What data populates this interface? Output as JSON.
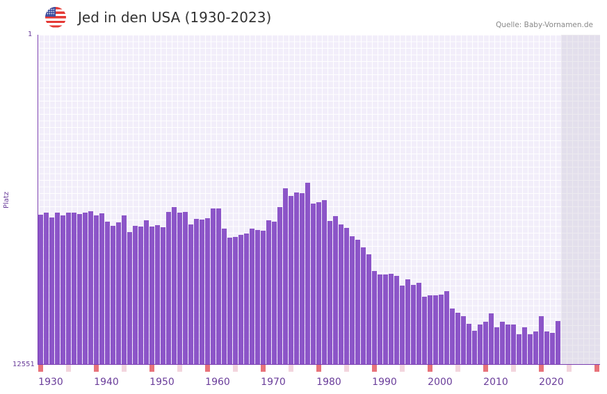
{
  "header": {
    "title": "Jed in den USA (1930-2023)",
    "source": "Quelle: Baby-Vornamen.de",
    "flag_icon": "us-flag-icon"
  },
  "colors": {
    "bar": "#8c55c8",
    "axis": "#7a3fb0",
    "decade_marker": "#e8737a",
    "half_decade_marker": "#f3d5de"
  },
  "chart_data": {
    "type": "bar",
    "title": "Jed in den USA (1930-2023)",
    "xlabel": "",
    "ylabel": "Platz",
    "y_inverted": true,
    "ylim": [
      1,
      12551
    ],
    "y_tick_labels": [
      "1",
      "12551"
    ],
    "xlim": [
      1930,
      2030
    ],
    "x_tick_labels": [
      "1930",
      "1940",
      "1950",
      "1960",
      "1970",
      "1980",
      "1990",
      "2000",
      "2010",
      "2020"
    ],
    "grid": true,
    "years": [
      1930,
      1931,
      1932,
      1933,
      1934,
      1935,
      1936,
      1937,
      1938,
      1939,
      1940,
      1941,
      1942,
      1943,
      1944,
      1945,
      1946,
      1947,
      1948,
      1949,
      1950,
      1951,
      1952,
      1953,
      1954,
      1955,
      1956,
      1957,
      1958,
      1959,
      1960,
      1961,
      1962,
      1963,
      1964,
      1965,
      1966,
      1967,
      1968,
      1969,
      1970,
      1971,
      1972,
      1973,
      1974,
      1975,
      1976,
      1977,
      1978,
      1979,
      1980,
      1981,
      1982,
      1983,
      1984,
      1985,
      1986,
      1987,
      1988,
      1989,
      1990,
      1991,
      1992,
      1993,
      1994,
      1995,
      1996,
      1997,
      1998,
      1999,
      2000,
      2001,
      2002,
      2003,
      2004,
      2005,
      2006,
      2007,
      2008,
      2009,
      2010,
      2011,
      2012,
      2013,
      2014,
      2015,
      2016,
      2017,
      2018,
      2019,
      2020,
      2021,
      2022,
      2023
    ],
    "ranks": [
      6843,
      6764,
      6949,
      6764,
      6870,
      6764,
      6764,
      6817,
      6764,
      6711,
      6870,
      6791,
      7108,
      7266,
      7134,
      6870,
      7504,
      7266,
      7293,
      7055,
      7293,
      7240,
      7319,
      6738,
      6553,
      6764,
      6738,
      7214,
      7002,
      7029,
      6976,
      6606,
      6606,
      7372,
      7716,
      7689,
      7610,
      7557,
      7372,
      7425,
      7451,
      7055,
      7108,
      6553,
      5840,
      6130,
      5998,
      6025,
      5628,
      6421,
      6368,
      6289,
      7082,
      6897,
      7214,
      7346,
      7663,
      7795,
      8086,
      8350,
      8984,
      9116,
      9116,
      9089,
      9169,
      9538,
      9301,
      9512,
      9433,
      9961,
      9909,
      9909,
      9882,
      9750,
      10411,
      10569,
      10701,
      10992,
      11256,
      11018,
      10912,
      10595,
      11124,
      10912,
      11018,
      11018,
      11388,
      11124,
      11388,
      11282,
      10701,
      11282,
      11335,
      10886
    ]
  }
}
